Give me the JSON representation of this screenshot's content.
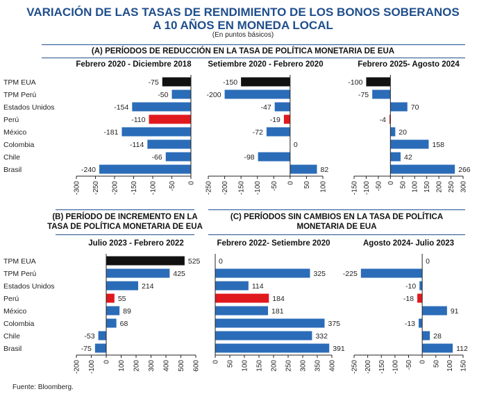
{
  "title_line1": "VARIACIÓN DE LAS TASAS DE RENDIMIENTO DE LOS BONOS SOBERANOS",
  "title_line2": "A 10 AÑOS EN MONEDA LOCAL",
  "subtitle": "(En puntos básicos)",
  "section_a": "(A) PERÍODOS DE REDUCCIÓN EN LA TASA DE POLÍTICA MONETARIA DE EUA",
  "section_b_line1": "(B) PERÍODO DE INCREMENTO EN LA",
  "section_b_line2": "TASA DE POLÍTICA MONETARIA DE EUA",
  "section_c_line1": "(C) PERÍODOS SIN CAMBIOS EN LA TASA DE POLÍTICA",
  "section_c_line2": "MONETARIA DE EUA",
  "source": "Fuente: Bloomberg.",
  "colors": {
    "title": "#1f4e8c",
    "bar": "#2b6cb8",
    "tpm": "#111111",
    "peru": "#e0191e"
  },
  "chart_data": [
    {
      "type": "bar",
      "title": "Febrero 2020 - Diciembre 2018",
      "categories": [
        "TPM EUA",
        "TPM Perú",
        "Estados Unidos",
        "Perú",
        "México",
        "Colombia",
        "Chile",
        "Brasil"
      ],
      "values": [
        -75,
        -50,
        -154,
        -110,
        -181,
        -114,
        -66,
        -240
      ],
      "xlim": [
        -300,
        0
      ],
      "xticks": [
        -300,
        -250,
        -200,
        -150,
        -100,
        -50,
        0
      ]
    },
    {
      "type": "bar",
      "title": "Setiembre 2020 - Febrero 2020",
      "categories": [
        "TPM EUA",
        "TPM Perú",
        "Estados Unidos",
        "Perú",
        "México",
        "Colombia",
        "Chile",
        "Brasil"
      ],
      "values": [
        -150,
        -200,
        -47,
        -19,
        -72,
        0,
        -98,
        82
      ],
      "xlim": [
        -250,
        100
      ],
      "xticks": [
        -250,
        -200,
        -150,
        -100,
        -50,
        0,
        50,
        100
      ]
    },
    {
      "type": "bar",
      "title": "Febrero 2025- Agosto 2024",
      "categories": [
        "TPM EUA",
        "TPM Perú",
        "Estados Unidos",
        "Perú",
        "México",
        "Colombia",
        "Chile",
        "Brasil"
      ],
      "values": [
        -100,
        -75,
        70,
        -4,
        20,
        158,
        42,
        266
      ],
      "xlim": [
        -150,
        300
      ],
      "xticks": [
        -150,
        -100,
        -50,
        0,
        50,
        100,
        150,
        200,
        250,
        300
      ]
    },
    {
      "type": "bar",
      "title": "Julio 2023 - Febrero 2022",
      "categories": [
        "TPM EUA",
        "TPM Perú",
        "Estados Unidos",
        "Perú",
        "México",
        "Colombia",
        "Chile",
        "Brasil"
      ],
      "values": [
        525,
        425,
        214,
        55,
        89,
        68,
        -53,
        -75
      ],
      "xlim": [
        -200,
        600
      ],
      "xticks": [
        -200,
        -100,
        0,
        100,
        200,
        300,
        400,
        500,
        600
      ]
    },
    {
      "type": "bar",
      "title": "Febrero 2022- Setiembre 2020",
      "categories": [
        "TPM EUA",
        "TPM Perú",
        "Estados Unidos",
        "Perú",
        "México",
        "Colombia",
        "Chile",
        "Brasil"
      ],
      "values": [
        0,
        325,
        114,
        184,
        181,
        375,
        332,
        391
      ],
      "xlim": [
        0,
        400
      ],
      "xticks": [
        0,
        50,
        100,
        150,
        200,
        250,
        300,
        350,
        400
      ]
    },
    {
      "type": "bar",
      "title": "Agosto 2024- Julio 2023",
      "categories": [
        "TPM EUA",
        "TPM Perú",
        "Estados Unidos",
        "Perú",
        "México",
        "Colombia",
        "Chile",
        "Brasil"
      ],
      "values": [
        0,
        -225,
        -10,
        -18,
        91,
        -13,
        28,
        112
      ],
      "xlim": [
        -250,
        150
      ],
      "xticks": [
        -250,
        -200,
        -150,
        -100,
        -50,
        0,
        50,
        100,
        150
      ]
    }
  ]
}
